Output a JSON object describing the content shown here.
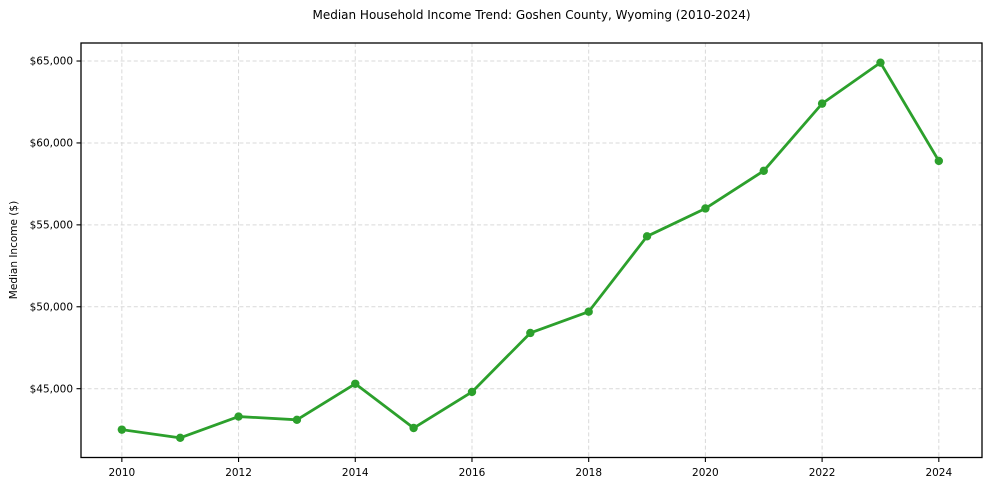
{
  "chart_data": {
    "type": "line",
    "title": "Median Household Income Trend: Goshen County, Wyoming (2010-2024)",
    "xlabel": "",
    "ylabel": "Median Income ($)",
    "x": [
      2010,
      2011,
      2012,
      2013,
      2014,
      2015,
      2016,
      2017,
      2018,
      2019,
      2020,
      2021,
      2022,
      2023,
      2024
    ],
    "series": [
      {
        "name": "Median Household Income",
        "color": "#2ca02c",
        "values": [
          42500,
          42000,
          43300,
          43100,
          45300,
          42600,
          44800,
          48400,
          49700,
          54300,
          56000,
          58300,
          62400,
          64900,
          58900
        ]
      }
    ],
    "xlim": [
      2009.3,
      2024.74
    ],
    "ylim": [
      40800,
      66100
    ],
    "xticks": {
      "values": [
        2010,
        2012,
        2014,
        2016,
        2018,
        2020,
        2022,
        2024
      ],
      "labels": [
        "2010",
        "2012",
        "2014",
        "2016",
        "2018",
        "2020",
        "2022",
        "2024"
      ]
    },
    "yticks": {
      "values": [
        45000,
        50000,
        55000,
        60000,
        65000
      ],
      "labels": [
        "$45,000",
        "$50,000",
        "$55,000",
        "$60,000",
        "$65,000"
      ]
    },
    "grid": true,
    "grid_style": "dashed",
    "grid_color": "#d9d9d9",
    "axis_color": "#000000",
    "background": "#ffffff",
    "legend_position": "none",
    "marker": "circle",
    "line_width": 2.8,
    "marker_radius": 4.2
  }
}
